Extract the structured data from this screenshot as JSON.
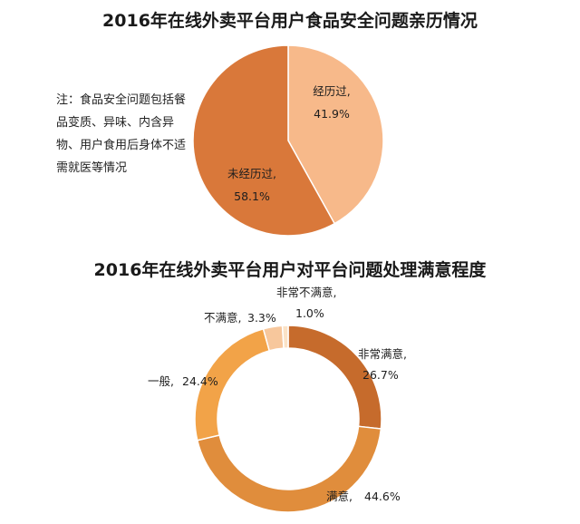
{
  "chart_data": [
    {
      "type": "pie",
      "title": "2016年在线外卖平台用户食品安全问题亲历情况",
      "note": "注：食品安全问题包括餐品变质、异味、内含异物、用户食用后身体不适需就医等情况",
      "slices": [
        {
          "label": "经历过,",
          "value_text": "41.9%",
          "value": 41.9,
          "color": "#F7B98A"
        },
        {
          "label": "未经历过,",
          "value_text": "58.1%",
          "value": 58.1,
          "color": "#D9783A"
        }
      ]
    },
    {
      "type": "pie",
      "style": "donut",
      "title": "2016年在线外卖平台用户对平台问题处理满意程度",
      "slices": [
        {
          "label": "非常满意,",
          "value_text": "26.7%",
          "value": 26.7,
          "color": "#C66B2C"
        },
        {
          "label": "满意,",
          "value_text": "44.6%",
          "value": 44.6,
          "color": "#E08D3C"
        },
        {
          "label": "一般,",
          "value_text": "24.4%",
          "value": 24.4,
          "color": "#F2A348"
        },
        {
          "label": "不满意,",
          "value_text": "3.3%",
          "value": 3.3,
          "color": "#F7C79C"
        },
        {
          "label": "非常不满意,",
          "value_text": "1.0%",
          "value": 1.0,
          "color": "#FBE2C6"
        }
      ]
    }
  ]
}
